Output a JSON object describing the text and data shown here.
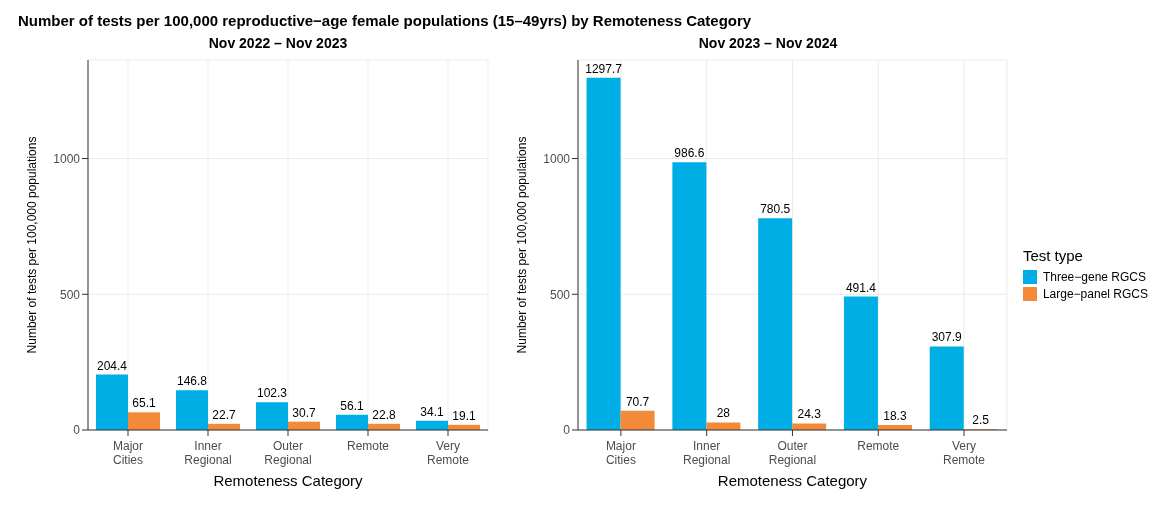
{
  "chart_data": [
    {
      "type": "bar",
      "title": "Number of tests per 100,000 reproductive−age female populations (15–49yrs) by Remoteness Category",
      "subtitle": "Nov 2022 – Nov 2023",
      "xlabel": "Remoteness Category",
      "ylabel": "Number of tests per 100,000 populations",
      "categories": [
        "Major Cities",
        "Inner Regional",
        "Outer Regional",
        "Remote",
        "Very Remote"
      ],
      "series": [
        {
          "color": "#00aee6",
          "values": [
            204.4,
            146.8,
            102.3,
            56.1,
            34.1
          ]
        },
        {
          "color": "#f28a3a",
          "values": [
            65.1,
            22.7,
            30.7,
            22.8,
            19.1
          ]
        }
      ],
      "ylim": [
        0,
        1363
      ],
      "yticks": [
        0,
        500,
        1000
      ],
      "grid": true,
      "data_labels": true,
      "legend": false
    },
    {
      "type": "bar",
      "subtitle": "Nov 2023 – Nov 2024",
      "xlabel": "Remoteness Category",
      "ylabel": "Number of tests per 100,000 populations",
      "categories": [
        "Major Cities",
        "Inner Regional",
        "Outer Regional",
        "Remote",
        "Very Remote"
      ],
      "series": [
        {
          "name": "Three−gene RGCS",
          "color": "#00aee6",
          "values": [
            1297.7,
            986.6,
            780.5,
            491.4,
            307.9
          ]
        },
        {
          "name": "Large−panel RGCS",
          "color": "#f28a3a",
          "values": [
            70.7,
            28,
            24.3,
            18.3,
            2.5
          ]
        }
      ],
      "ylim": [
        0,
        1363
      ],
      "yticks": [
        0,
        500,
        1000
      ],
      "grid": true,
      "data_labels": true,
      "legend": "right",
      "legend_title": "Test type"
    }
  ]
}
